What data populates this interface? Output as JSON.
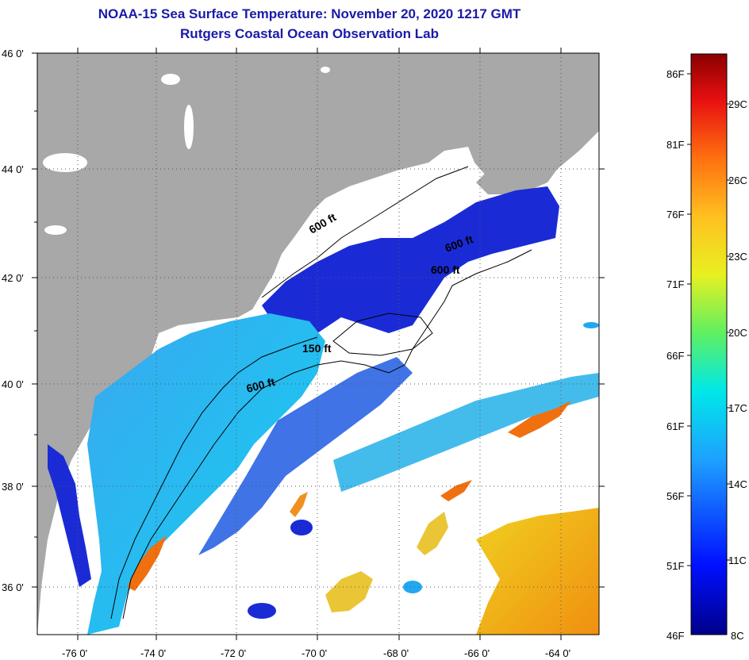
{
  "title": "NOAA-15 Sea Surface Temperature:  November 20, 2020 1217 GMT",
  "subtitle": "Rutgers Coastal Ocean Observation Lab",
  "map": {
    "lat_labels": [
      "46 0'",
      "44 0'",
      "42 0'",
      "40 0'",
      "38 0'",
      "36 0'"
    ],
    "lon_labels": [
      "-76 0'",
      "-74 0'",
      "-72 0'",
      "-70 0'",
      "-68 0'",
      "-66 0'",
      "-64 0'"
    ],
    "contour_labels": [
      "600 ft",
      "600 ft",
      "600 ft",
      "150 ft",
      "600 ft"
    ],
    "colors": {
      "land": "#a8a8a8",
      "cloud": "#ffffff",
      "cold": "#1a2bd6",
      "mid": "#22a8f0",
      "warm": "#f0b010",
      "hot": "#e05010"
    }
  },
  "colorbar": {
    "fahrenheit": [
      "86F",
      "81F",
      "76F",
      "71F",
      "66F",
      "61F",
      "56F",
      "51F",
      "46F"
    ],
    "celsius": [
      "29C",
      "26C",
      "23C",
      "20C",
      "17C",
      "14C",
      "11C",
      "8C"
    ]
  }
}
